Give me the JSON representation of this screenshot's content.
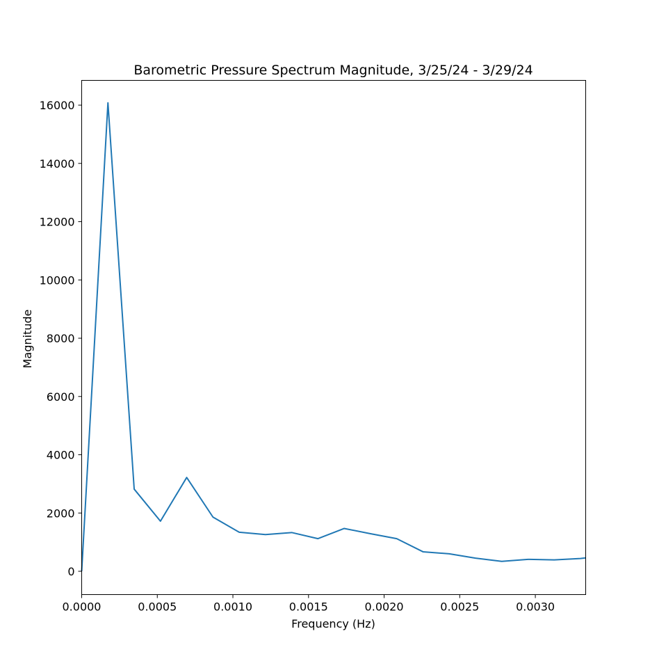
{
  "chart_data": {
    "type": "line",
    "title": "Barometric Pressure Spectrum Magnitude, 3/25/24 - 3/29/24",
    "xlabel": "Frequency (Hz)",
    "ylabel": "Magnitude",
    "xlim": [
      0,
      0.003333
    ],
    "ylim": [
      -800,
      16850
    ],
    "xticks": [
      0,
      0.0005,
      0.001,
      0.0015,
      0.002,
      0.0025,
      0.003
    ],
    "xtick_labels": [
      "0.0000",
      "0.0005",
      "0.0010",
      "0.0015",
      "0.0020",
      "0.0025",
      "0.0030"
    ],
    "yticks": [
      0,
      2000,
      4000,
      6000,
      8000,
      10000,
      12000,
      14000,
      16000
    ],
    "ytick_labels": [
      "0",
      "2000",
      "4000",
      "6000",
      "8000",
      "10000",
      "12000",
      "14000",
      "16000"
    ],
    "grid": false,
    "series": [
      {
        "color": "#1f77b4",
        "x": [
          0,
          0.0001736,
          0.0003472,
          0.0005208,
          0.0006944,
          0.0008681,
          0.0010417,
          0.0012153,
          0.0013889,
          0.0015625,
          0.0017361,
          0.0019097,
          0.0020833,
          0.0022569,
          0.0024306,
          0.0026042,
          0.0027778,
          0.0029514,
          0.003125,
          0.0032986,
          0.0033333
        ],
        "y": [
          0,
          16080,
          2820,
          1720,
          3220,
          1860,
          1340,
          1260,
          1330,
          1120,
          1470,
          1290,
          1120,
          670,
          600,
          450,
          340,
          410,
          390,
          440,
          460
        ]
      }
    ]
  }
}
